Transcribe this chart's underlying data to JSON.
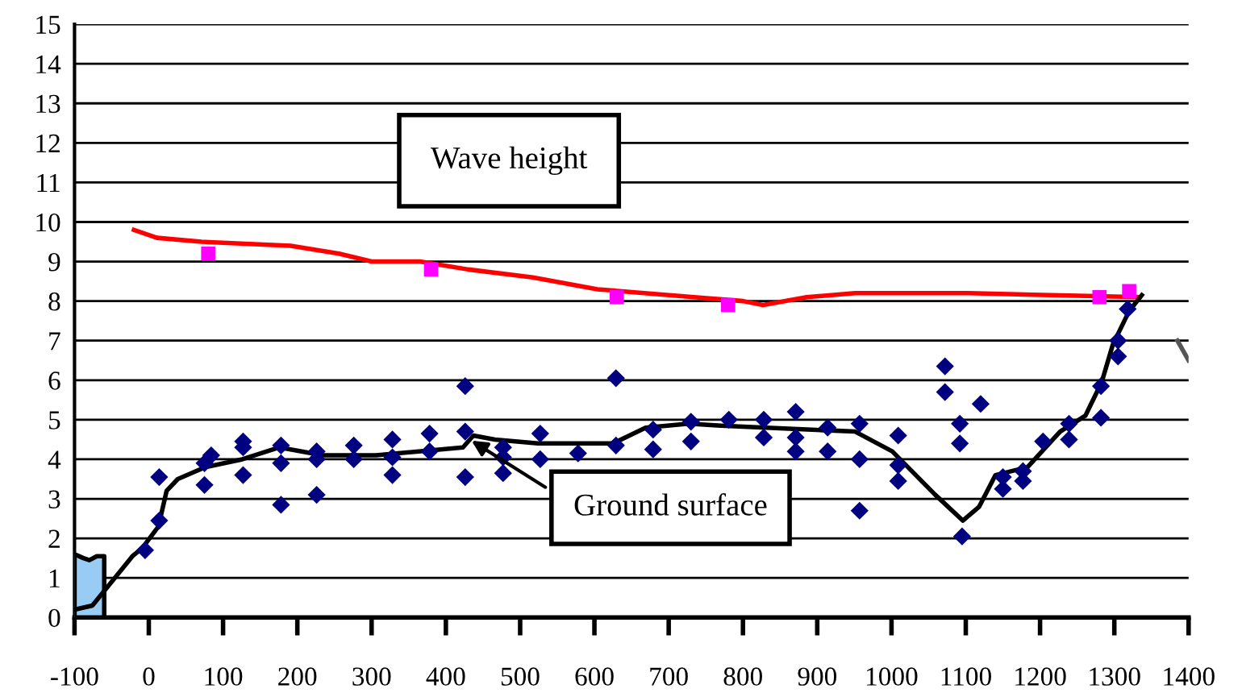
{
  "chart_data": {
    "type": "line",
    "xlim": [
      -100,
      1400
    ],
    "ylim": [
      0,
      15
    ],
    "xticks": [
      -100,
      0,
      100,
      200,
      300,
      400,
      500,
      600,
      700,
      800,
      900,
      1000,
      1100,
      1200,
      1300,
      1400
    ],
    "yticks": [
      0,
      1,
      2,
      3,
      4,
      5,
      6,
      7,
      8,
      9,
      10,
      11,
      12,
      13,
      14,
      15
    ],
    "grid": "y",
    "legend": false,
    "annotations": [
      "Wave height",
      {
        "text": "Ground surface",
        "x": 432,
        "y": 4.5
      }
    ],
    "series": [
      {
        "type": "area",
        "color": "#99ccf5",
        "x": [
          -100,
          -88,
          -80,
          -70,
          -60
        ],
        "values": [
          1.6,
          1.5,
          1.45,
          1.55,
          1.55
        ]
      },
      {
        "color": "#ff0000",
        "marker": "none",
        "x": [
          -20,
          11,
          71,
          191,
          256,
          300,
          365,
          430,
          517,
          604,
          734,
          800,
          827,
          886,
          951,
          1103,
          1333
        ],
        "values": [
          9.8,
          9.6,
          9.5,
          9.4,
          9.2,
          9.0,
          9.0,
          8.8,
          8.6,
          8.3,
          8.1,
          8.0,
          7.9,
          8.1,
          8.2,
          8.2,
          8.1
        ]
      },
      {
        "type": "scatter",
        "color": "#ff00ff",
        "marker": "square",
        "x": [
          80,
          380,
          630,
          780,
          1280,
          1320
        ],
        "values": [
          9.2,
          8.8,
          8.1,
          7.9,
          8.1,
          8.25
        ]
      },
      {
        "color": "#000000",
        "marker": "none",
        "x": [
          -100,
          -76,
          -22,
          -9,
          13,
          24,
          39,
          76,
          126,
          176,
          234,
          306,
          423,
          437,
          466,
          524,
          582,
          625,
          669,
          727,
          770,
          951,
          1001,
          1059,
          1096,
          1118,
          1140,
          1183,
          1227,
          1261,
          1283,
          1298,
          1320,
          1337
        ],
        "values": [
          0.2,
          0.3,
          1.55,
          1.75,
          2.3,
          3.2,
          3.5,
          3.8,
          4.0,
          4.3,
          4.1,
          4.1,
          4.3,
          4.6,
          4.5,
          4.4,
          4.4,
          4.4,
          4.8,
          4.9,
          4.85,
          4.7,
          4.2,
          3.1,
          2.45,
          2.8,
          3.6,
          3.8,
          4.7,
          5.1,
          5.95,
          6.9,
          7.75,
          8.15
        ]
      },
      {
        "type": "scatter",
        "color": "#000080",
        "marker": "diamond",
        "x": [
          -5,
          14,
          14,
          75,
          75,
          84,
          127,
          127,
          127,
          178,
          178,
          178,
          226,
          226,
          226,
          276,
          276,
          328,
          328,
          328,
          378,
          378,
          426,
          426,
          426,
          477,
          477,
          477,
          527,
          527,
          578,
          629,
          629,
          679,
          679,
          730,
          730,
          781,
          828,
          828,
          871,
          871,
          871,
          914,
          914,
          957,
          957,
          957,
          1009,
          1009,
          1009,
          1072,
          1072,
          1092,
          1092,
          1095,
          1120,
          1150,
          1150,
          1177,
          1177,
          1204,
          1239,
          1239,
          1282,
          1282,
          1305,
          1305,
          1318
        ],
        "values": [
          1.7,
          2.45,
          3.55,
          3.35,
          3.9,
          4.1,
          3.6,
          4.3,
          4.45,
          2.85,
          3.9,
          4.35,
          3.1,
          4.0,
          4.2,
          4.0,
          4.35,
          3.6,
          4.05,
          4.5,
          4.2,
          4.65,
          5.85,
          4.7,
          3.55,
          3.65,
          4.05,
          4.3,
          4.0,
          4.65,
          4.15,
          4.35,
          6.05,
          4.75,
          4.25,
          4.95,
          4.45,
          5.0,
          5.0,
          4.55,
          5.2,
          4.55,
          4.2,
          4.8,
          4.2,
          4.9,
          4.0,
          2.7,
          4.6,
          3.85,
          3.45,
          6.35,
          5.7,
          4.9,
          4.4,
          2.05,
          5.4,
          3.55,
          3.25,
          3.7,
          3.45,
          4.45,
          4.9,
          4.5,
          5.85,
          5.05,
          7.0,
          6.6,
          7.8
        ]
      },
      {
        "type": "line",
        "color": "#555555",
        "marker": "none",
        "x": [
          1385,
          1400
        ],
        "values": [
          7.0,
          6.5
        ]
      }
    ]
  }
}
